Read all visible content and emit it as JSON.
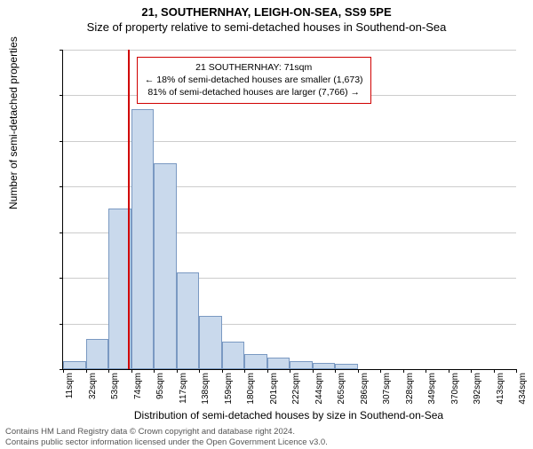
{
  "title_line1": "21, SOUTHERNHAY, LEIGH-ON-SEA, SS9 5PE",
  "title_line2": "Size of property relative to semi-detached houses in Southend-on-Sea",
  "ylabel": "Number of semi-detached properties",
  "xlabel": "Distribution of semi-detached houses by size in Southend-on-Sea",
  "callout": {
    "line1": "21 SOUTHERNHAY: 71sqm",
    "line2": "← 18% of semi-detached houses are smaller (1,673)",
    "line3": "81% of semi-detached houses are larger (7,766) →"
  },
  "footer": {
    "line1": "Contains HM Land Registry data © Crown copyright and database right 2024.",
    "line2": "Contains public sector information licensed under the Open Government Licence v3.0."
  },
  "chart": {
    "type": "histogram",
    "ymax": 3500,
    "ytick_step": 500,
    "bar_fill": "#c9d9ec",
    "bar_border": "#7a99c2",
    "grid_color": "#cccccc",
    "marker_color": "#d00000",
    "marker_x_value": 71,
    "x_start": 11,
    "x_bin_width": 21,
    "xticks": [
      "11sqm",
      "32sqm",
      "53sqm",
      "74sqm",
      "95sqm",
      "117sqm",
      "138sqm",
      "159sqm",
      "180sqm",
      "201sqm",
      "222sqm",
      "244sqm",
      "265sqm",
      "286sqm",
      "307sqm",
      "328sqm",
      "349sqm",
      "370sqm",
      "392sqm",
      "413sqm",
      "434sqm"
    ],
    "bars": [
      90,
      330,
      1760,
      2850,
      2260,
      1060,
      580,
      300,
      170,
      130,
      90,
      70,
      60,
      0,
      0,
      0,
      0,
      0,
      0,
      0
    ]
  }
}
